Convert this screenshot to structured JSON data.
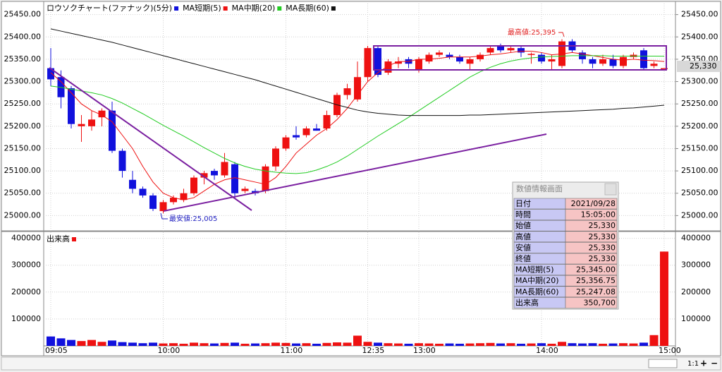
{
  "chart_data": [
    {
      "type": "candlestick",
      "title": "ロウソクチャート(ファナック)(5分)",
      "up_color": "#ee1111",
      "down_color": "#1111dd",
      "ylim": [
        24969,
        25470
      ],
      "yticks": [
        {
          "value": 25000,
          "label": "25000.00"
        },
        {
          "value": 25050,
          "label": "25050.00"
        },
        {
          "value": 25100,
          "label": "25100.00"
        },
        {
          "value": 25150,
          "label": "25150.00"
        },
        {
          "value": 25200,
          "label": "25200.00"
        },
        {
          "value": 25250,
          "label": "25250.00"
        },
        {
          "value": 25300,
          "label": "25300.00"
        },
        {
          "value": 25350,
          "label": "25350.00"
        },
        {
          "value": 25400,
          "label": "25400.00"
        },
        {
          "value": 25450,
          "label": "25450.00"
        }
      ],
      "grid": true,
      "open": [
        25330,
        25310,
        25285,
        25200,
        25200,
        25220,
        25235,
        25145,
        25080,
        25060,
        25045,
        25010,
        25030,
        25035,
        25050,
        25085,
        25100,
        25090,
        25115,
        25055,
        25055,
        25055,
        25110,
        25150,
        25180,
        25180,
        25195,
        25195,
        25225,
        25270,
        25260,
        25310,
        25375,
        25320,
        25340,
        25350,
        25325,
        25345,
        25360,
        25360,
        25355,
        25340,
        25350,
        25365,
        25380,
        25370,
        25375,
        25360,
        25360,
        25345,
        25335,
        25390,
        25365,
        25350,
        25340,
        25350,
        25335,
        25355,
        25370,
        25335,
        25330
      ],
      "high": [
        25375,
        25325,
        25290,
        25225,
        25235,
        25240,
        25255,
        25150,
        25100,
        25065,
        25050,
        25035,
        25045,
        25060,
        25090,
        25100,
        25105,
        25140,
        25120,
        25065,
        25060,
        25115,
        25155,
        25180,
        25200,
        25200,
        25205,
        25235,
        25275,
        25295,
        25345,
        25380,
        25380,
        25350,
        25355,
        25355,
        25355,
        25365,
        25370,
        25365,
        25360,
        25355,
        25365,
        25380,
        25385,
        25380,
        25380,
        25365,
        25365,
        25360,
        25395,
        25395,
        25370,
        25355,
        25360,
        25360,
        25360,
        25365,
        25375,
        25345,
        25330
      ],
      "low": [
        25290,
        25240,
        25195,
        25165,
        25190,
        25200,
        25140,
        25085,
        25050,
        25040,
        25010,
        25005,
        25025,
        25030,
        25045,
        25070,
        25080,
        25085,
        25040,
        25050,
        25045,
        25050,
        25100,
        25145,
        25170,
        25175,
        25190,
        25190,
        25220,
        25260,
        25255,
        25300,
        25310,
        25315,
        25330,
        25330,
        25320,
        25340,
        25355,
        25350,
        25340,
        25325,
        25345,
        25360,
        25365,
        25365,
        25355,
        25340,
        25340,
        25325,
        25330,
        25365,
        25340,
        25330,
        25335,
        25330,
        25330,
        25350,
        25325,
        25330,
        25330
      ],
      "close": [
        25305,
        25265,
        25205,
        25205,
        25215,
        25235,
        25145,
        25100,
        25060,
        25045,
        25015,
        25030,
        25040,
        25050,
        25085,
        25095,
        25090,
        25120,
        25050,
        25060,
        25050,
        25110,
        25150,
        25175,
        25175,
        25195,
        25190,
        25225,
        25270,
        25285,
        25310,
        25375,
        25315,
        25345,
        25345,
        25340,
        25350,
        25360,
        25365,
        25355,
        25345,
        25350,
        25360,
        25375,
        25370,
        25375,
        25365,
        25362,
        25345,
        25350,
        25390,
        25370,
        25350,
        25340,
        25350,
        25335,
        25355,
        25360,
        25330,
        25340,
        25330
      ],
      "series": [
        {
          "name": "MA短期(5)",
          "color": "#ee1111",
          "values": [
            25320,
            25300,
            25275,
            25250,
            25235,
            25225,
            25210,
            25180,
            25150,
            25110,
            25075,
            25050,
            25040,
            25035,
            25040,
            25055,
            25070,
            25080,
            25085,
            25080,
            25075,
            25070,
            25085,
            25110,
            25140,
            25160,
            25180,
            25195,
            25215,
            25240,
            25270,
            25300,
            25320,
            25335,
            25345,
            25345,
            25350,
            25350,
            25352,
            25355,
            25355,
            25355,
            25357,
            25360,
            25362,
            25365,
            25368,
            25368,
            25365,
            25360,
            25362,
            25365,
            25362,
            25358,
            25354,
            25350,
            25348,
            25350,
            25348,
            25347,
            25345
          ]
        },
        {
          "name": "MA中期(20)",
          "color": "#22cc22",
          "values": [
            25290,
            25287,
            25283,
            25279,
            25275,
            25270,
            25262,
            25252,
            25240,
            25228,
            25215,
            25202,
            25190,
            25178,
            25165,
            25152,
            25140,
            25128,
            25118,
            25110,
            25104,
            25100,
            25097,
            25095,
            25094,
            25096,
            25102,
            25110,
            25120,
            25133,
            25148,
            25163,
            25178,
            25192,
            25206,
            25220,
            25235,
            25250,
            25265,
            25280,
            25295,
            25310,
            25322,
            25332,
            25340,
            25346,
            25350,
            25353,
            25355,
            25356,
            25357,
            25358,
            25358,
            25358,
            25358,
            25357,
            25357,
            25357,
            25357,
            25357,
            25356.75
          ]
        },
        {
          "name": "MA長期(60)",
          "color": "#111111",
          "values": [
            25418,
            25413,
            25408,
            25403,
            25398,
            25393,
            25388,
            25382,
            25376,
            25370,
            25364,
            25358,
            25352,
            25346,
            25340,
            25334,
            25328,
            25322,
            25316,
            25310,
            25304,
            25297,
            25290,
            25283,
            25276,
            25269,
            25262,
            25255,
            25248,
            25242,
            25236,
            25232,
            25229,
            25227,
            25225,
            25224,
            25224,
            25224,
            25224,
            25224,
            25224,
            25225,
            25225,
            25226,
            25227,
            25228,
            25229,
            25230,
            25231,
            25232,
            25233,
            25234,
            25235,
            25236,
            25237,
            25238,
            25240,
            25241,
            25243,
            25245,
            25247.08
          ]
        }
      ],
      "annotations": [
        "最高値:25,395",
        "最安値:25,005"
      ],
      "last_label": "25,330"
    },
    {
      "type": "bar",
      "title": "出来高",
      "color": "#ee1111",
      "categories": [
        "09:05",
        null,
        null,
        null,
        null,
        null,
        null,
        null,
        null,
        null,
        null,
        "10:00",
        null,
        null,
        null,
        null,
        null,
        null,
        null,
        null,
        null,
        null,
        null,
        "11:00",
        null,
        null,
        null,
        null,
        null,
        null,
        null,
        "12:35",
        null,
        null,
        null,
        null,
        "13:00",
        null,
        null,
        null,
        null,
        null,
        null,
        null,
        null,
        null,
        null,
        null,
        "14:00",
        null,
        null,
        null,
        null,
        null,
        null,
        null,
        null,
        null,
        null,
        null,
        "15:00"
      ],
      "values": [
        35000,
        28000,
        22000,
        18000,
        22000,
        15000,
        20000,
        14000,
        12000,
        10000,
        12000,
        9000,
        10000,
        8000,
        12000,
        10000,
        9000,
        11000,
        12000,
        8000,
        9000,
        10000,
        12000,
        11000,
        9000,
        10000,
        8000,
        11000,
        13000,
        12000,
        38000,
        15000,
        12000,
        10000,
        9000,
        8000,
        10000,
        9000,
        8000,
        9000,
        8000,
        9000,
        10000,
        11000,
        9000,
        10000,
        8000,
        9000,
        10000,
        8000,
        15000,
        10000,
        9000,
        10000,
        8000,
        9000,
        10000,
        9000,
        12000,
        40000,
        350700
      ],
      "ylim": [
        0,
        420000
      ],
      "yticks": [
        100000,
        200000,
        300000,
        400000
      ],
      "grid": true
    }
  ],
  "info_panel": {
    "title": "数値情報画面",
    "rows": [
      [
        "日付",
        "2021/09/28"
      ],
      [
        "時間",
        "15:05:00"
      ],
      [
        "始値",
        "25,330"
      ],
      [
        "高値",
        "25,330"
      ],
      [
        "安値",
        "25,330"
      ],
      [
        "終値",
        "25,330"
      ],
      [
        "MA短期(5)",
        "25,345.00"
      ],
      [
        "MA中期(20)",
        "25,356.75"
      ],
      [
        "MA長期(60)",
        "25,247.08"
      ],
      [
        "出来高",
        "350,700"
      ]
    ]
  },
  "toolbar": {
    "zoom": "1:1"
  }
}
